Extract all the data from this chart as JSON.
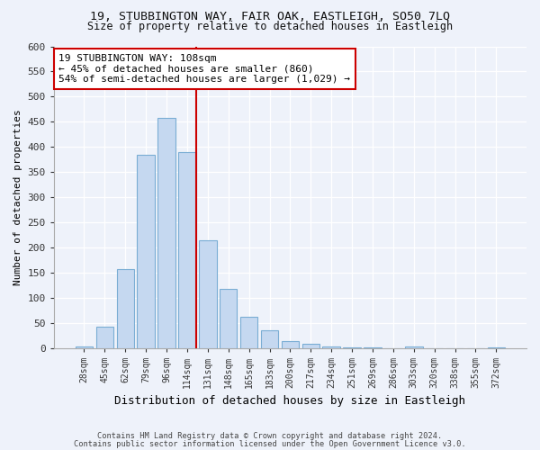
{
  "title1": "19, STUBBINGTON WAY, FAIR OAK, EASTLEIGH, SO50 7LQ",
  "title2": "Size of property relative to detached houses in Eastleigh",
  "xlabel": "Distribution of detached houses by size in Eastleigh",
  "ylabel": "Number of detached properties",
  "bar_labels": [
    "28sqm",
    "45sqm",
    "62sqm",
    "79sqm",
    "96sqm",
    "114sqm",
    "131sqm",
    "148sqm",
    "165sqm",
    "183sqm",
    "200sqm",
    "217sqm",
    "234sqm",
    "251sqm",
    "269sqm",
    "286sqm",
    "303sqm",
    "320sqm",
    "338sqm",
    "355sqm",
    "372sqm"
  ],
  "bar_values": [
    3,
    43,
    157,
    385,
    457,
    390,
    215,
    118,
    62,
    35,
    15,
    8,
    4,
    2,
    1,
    0,
    4,
    0,
    0,
    0,
    1
  ],
  "bar_color": "#c5d8f0",
  "bar_edge_color": "#7aadd4",
  "vline_x": 5.45,
  "vline_color": "#cc0000",
  "annotation_text": "19 STUBBINGTON WAY: 108sqm\n← 45% of detached houses are smaller (860)\n54% of semi-detached houses are larger (1,029) →",
  "annotation_box_color": "#ffffff",
  "annotation_box_edge": "#cc0000",
  "ylim": [
    0,
    600
  ],
  "yticks": [
    0,
    50,
    100,
    150,
    200,
    250,
    300,
    350,
    400,
    450,
    500,
    550,
    600
  ],
  "footnote1": "Contains HM Land Registry data © Crown copyright and database right 2024.",
  "footnote2": "Contains public sector information licensed under the Open Government Licence v3.0.",
  "bg_color": "#eef2fa"
}
